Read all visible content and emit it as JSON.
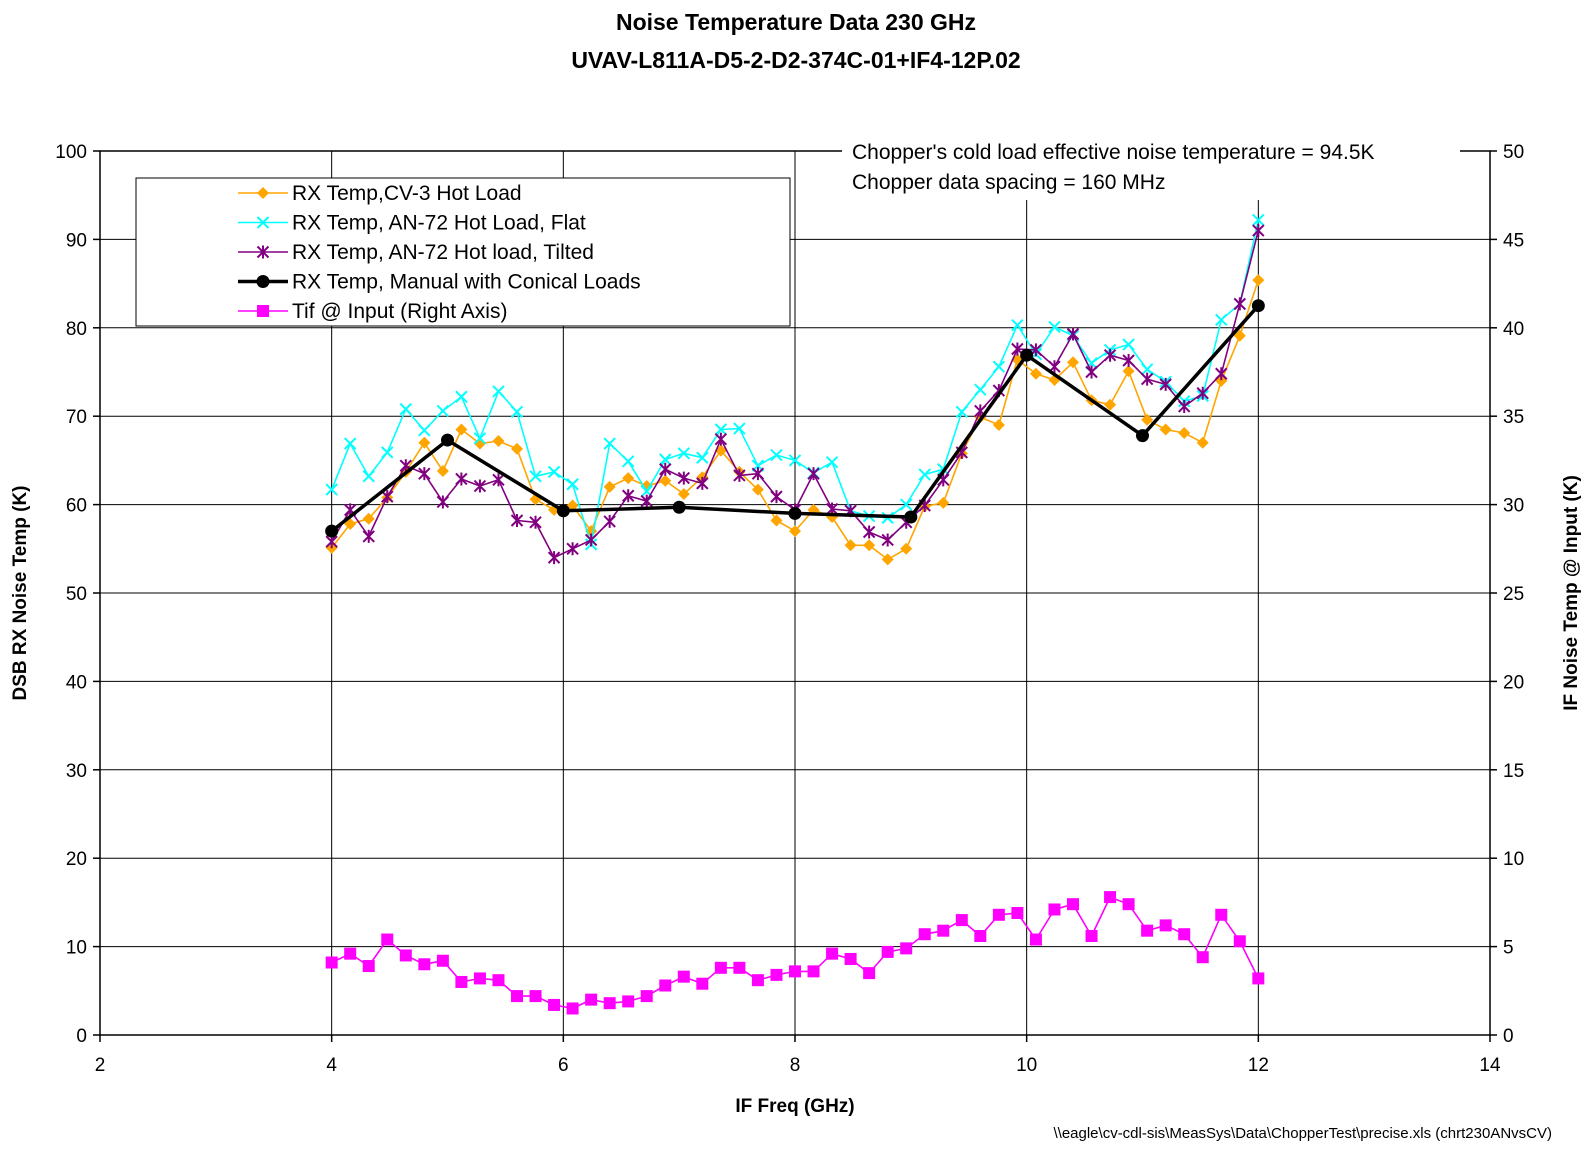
{
  "chart_data": {
    "type": "line",
    "title": "Noise Temperature Data 230 GHz",
    "subtitle": "UVAV-L811A-D5-2-D2-374C-01+IF4-12P.02",
    "xlabel": "IF Freq (GHz)",
    "ylabel": "DSB RX Noise Temp (K)",
    "y2label": "IF Noise Temp @ Input (K)",
    "xlim": [
      2,
      14
    ],
    "ylim": [
      0,
      100
    ],
    "y2lim": [
      0,
      50
    ],
    "xticks": [
      2,
      4,
      6,
      8,
      10,
      12,
      14
    ],
    "yticks": [
      0,
      10,
      20,
      30,
      40,
      50,
      60,
      70,
      80,
      90,
      100
    ],
    "y2ticks": [
      0,
      5,
      10,
      15,
      20,
      25,
      30,
      35,
      40,
      45,
      50
    ],
    "grid": true,
    "legend_position": "top-left",
    "annotations": [
      "Chopper's cold load effective noise temperature = 94.5K",
      "Chopper data spacing = 160 MHz"
    ],
    "footnote": "\\\\eagle\\cv-cdl-sis\\MeasSys\\Data\\ChopperTest\\precise.xls (chrt230ANvsCV)",
    "x": [
      4.0,
      4.16,
      4.32,
      4.48,
      4.64,
      4.8,
      4.96,
      5.12,
      5.28,
      5.44,
      5.6,
      5.76,
      5.92,
      6.08,
      6.24,
      6.4,
      6.56,
      6.72,
      6.88,
      7.04,
      7.2,
      7.36,
      7.52,
      7.68,
      7.84,
      8.0,
      8.16,
      8.32,
      8.48,
      8.64,
      8.8,
      8.96,
      9.12,
      9.28,
      9.44,
      9.6,
      9.76,
      9.92,
      10.08,
      10.24,
      10.4,
      10.56,
      10.72,
      10.88,
      11.04,
      11.2,
      11.36,
      11.52,
      11.68,
      11.84,
      12.0
    ],
    "series": [
      {
        "name": "RX Temp,CV-3 Hot Load",
        "color": "#ffa500",
        "marker": "diamond",
        "axis": "left",
        "values": [
          55.1,
          57.8,
          58.4,
          60.8,
          63.7,
          67.0,
          63.8,
          68.5,
          66.9,
          67.2,
          66.3,
          60.6,
          59.4,
          59.9,
          57.0,
          62.0,
          63.0,
          62.1,
          62.7,
          61.2,
          63.1,
          66.1,
          63.7,
          61.7,
          58.2,
          57.0,
          59.4,
          58.6,
          55.4,
          55.4,
          53.8,
          55.0,
          59.8,
          60.2,
          65.8,
          69.9,
          69.0,
          76.4,
          74.8,
          74.1,
          76.1,
          71.8,
          71.3,
          75.1,
          69.6,
          68.5,
          68.1,
          67.0,
          74.0,
          79.1,
          85.4
        ]
      },
      {
        "name": "RX Temp, AN-72 Hot Load, Flat",
        "color": "#00ffff",
        "marker": "x",
        "axis": "left",
        "values": [
          61.7,
          66.9,
          63.2,
          65.9,
          70.8,
          68.4,
          70.6,
          72.2,
          67.5,
          72.8,
          70.5,
          63.2,
          63.7,
          62.3,
          55.5,
          66.9,
          64.9,
          61.5,
          65.1,
          65.8,
          65.3,
          68.5,
          68.6,
          64.4,
          65.6,
          65.0,
          63.6,
          64.8,
          59.3,
          58.7,
          58.5,
          60.0,
          63.4,
          64.0,
          70.5,
          73.0,
          75.6,
          80.3,
          77.0,
          80.1,
          79.1,
          76.0,
          77.5,
          78.1,
          75.3,
          73.9,
          71.7,
          72.3,
          80.9,
          82.7,
          92.2
        ]
      },
      {
        "name": "RX Temp, AN-72 Hot load, Tilted",
        "color": "#800080",
        "marker": "star",
        "axis": "left",
        "values": [
          55.8,
          59.4,
          56.4,
          60.9,
          64.4,
          63.5,
          60.3,
          62.9,
          62.1,
          62.8,
          58.2,
          58.0,
          54.0,
          55.0,
          56.0,
          58.1,
          61.0,
          60.4,
          64.0,
          63.0,
          62.4,
          67.4,
          63.3,
          63.5,
          60.9,
          59.4,
          63.5,
          59.5,
          59.3,
          56.9,
          56.0,
          58.0,
          59.9,
          62.8,
          65.9,
          70.6,
          72.9,
          77.6,
          77.5,
          75.6,
          79.3,
          75.0,
          76.9,
          76.3,
          74.2,
          73.6,
          71.1,
          72.6,
          74.8,
          82.7,
          91.0
        ]
      },
      {
        "name": "RX Temp, Manual with Conical Loads",
        "color": "#000000",
        "marker": "circle",
        "axis": "left",
        "x": [
          4.0,
          5.0,
          6.0,
          7.0,
          8.0,
          9.0,
          10.0,
          11.0,
          12.0
        ],
        "values": [
          57.0,
          67.3,
          59.3,
          59.7,
          59.0,
          58.6,
          76.9,
          67.8,
          82.5
        ]
      },
      {
        "name": "Tif @ Input (Right Axis)",
        "color": "#ff00ff",
        "marker": "square",
        "axis": "right",
        "values": [
          4.1,
          4.6,
          3.9,
          5.4,
          4.5,
          4.0,
          4.2,
          3.0,
          3.2,
          3.1,
          2.2,
          2.2,
          1.7,
          1.5,
          2.0,
          1.8,
          1.9,
          2.2,
          2.8,
          3.3,
          2.9,
          3.8,
          3.8,
          3.1,
          3.4,
          3.6,
          3.6,
          4.6,
          4.3,
          3.5,
          4.7,
          4.9,
          5.7,
          5.9,
          6.5,
          5.6,
          6.8,
          6.9,
          5.4,
          7.1,
          7.4,
          5.6,
          7.8,
          7.4,
          5.9,
          6.2,
          5.7,
          4.4,
          6.8,
          5.3,
          3.2
        ]
      }
    ]
  }
}
